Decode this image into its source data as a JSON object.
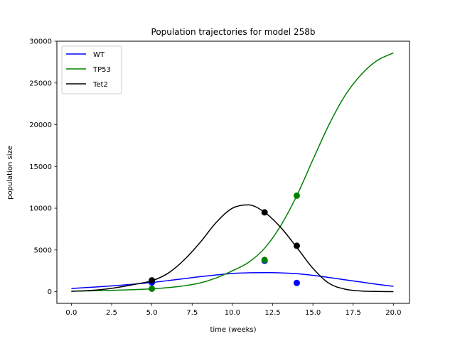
{
  "chart_data": {
    "type": "line",
    "title": "Population trajectories for model 258b",
    "xlabel": "time (weeks)",
    "ylabel": "population size",
    "xlim": [
      -0.9,
      21.0
    ],
    "ylim": [
      -1400,
      30000
    ],
    "x_ticks": [
      0.0,
      2.5,
      5.0,
      7.5,
      10.0,
      12.5,
      15.0,
      17.5,
      20.0
    ],
    "x_tick_labels": [
      "0.0",
      "2.5",
      "5.0",
      "7.5",
      "10.0",
      "12.5",
      "15.0",
      "17.5",
      "20.0"
    ],
    "y_ticks": [
      0,
      5000,
      10000,
      15000,
      20000,
      25000,
      30000
    ],
    "y_tick_labels": [
      "0",
      "5000",
      "10000",
      "15000",
      "20000",
      "25000",
      "30000"
    ],
    "grid": false,
    "legend_position": "top-left",
    "series": [
      {
        "name": "WT",
        "color": "#0000ff",
        "curve": {
          "x": [
            0,
            1,
            2,
            3,
            4,
            5,
            6,
            7,
            8,
            9,
            10,
            11,
            12,
            13,
            14,
            15,
            16,
            17,
            18,
            19,
            20
          ],
          "y": [
            380,
            500,
            620,
            760,
            920,
            1100,
            1320,
            1560,
            1800,
            2000,
            2180,
            2260,
            2280,
            2250,
            2150,
            1950,
            1700,
            1420,
            1150,
            880,
            640
          ]
        },
        "points": {
          "x": [
            5,
            12,
            14
          ],
          "y": [
            1100,
            3700,
            1050
          ]
        }
      },
      {
        "name": "TP53",
        "color": "#008000",
        "curve": {
          "x": [
            0,
            1,
            2,
            3,
            4,
            5,
            6,
            7,
            8,
            9,
            10,
            11,
            12,
            13,
            14,
            15,
            16,
            17,
            18,
            19,
            20
          ],
          "y": [
            60,
            90,
            130,
            180,
            250,
            340,
            480,
            700,
            1050,
            1650,
            2500,
            3500,
            5200,
            7900,
            11500,
            15800,
            20000,
            23500,
            26000,
            27700,
            28600
          ]
        },
        "points": {
          "x": [
            5,
            12,
            14
          ],
          "y": [
            350,
            3800,
            11500
          ]
        }
      },
      {
        "name": "Tet2",
        "color": "#000000",
        "curve": {
          "x": [
            0,
            1,
            2,
            3,
            4,
            5,
            6,
            7,
            8,
            9,
            10,
            11,
            12,
            13,
            14,
            15,
            16,
            17,
            18,
            19,
            20
          ],
          "y": [
            40,
            120,
            280,
            550,
            900,
            1300,
            2200,
            3800,
            5900,
            8300,
            10000,
            10400,
            9500,
            7700,
            5300,
            2800,
            1000,
            300,
            80,
            20,
            5
          ]
        },
        "points": {
          "x": [
            5,
            12,
            14
          ],
          "y": [
            1350,
            9500,
            5500
          ]
        }
      }
    ]
  }
}
